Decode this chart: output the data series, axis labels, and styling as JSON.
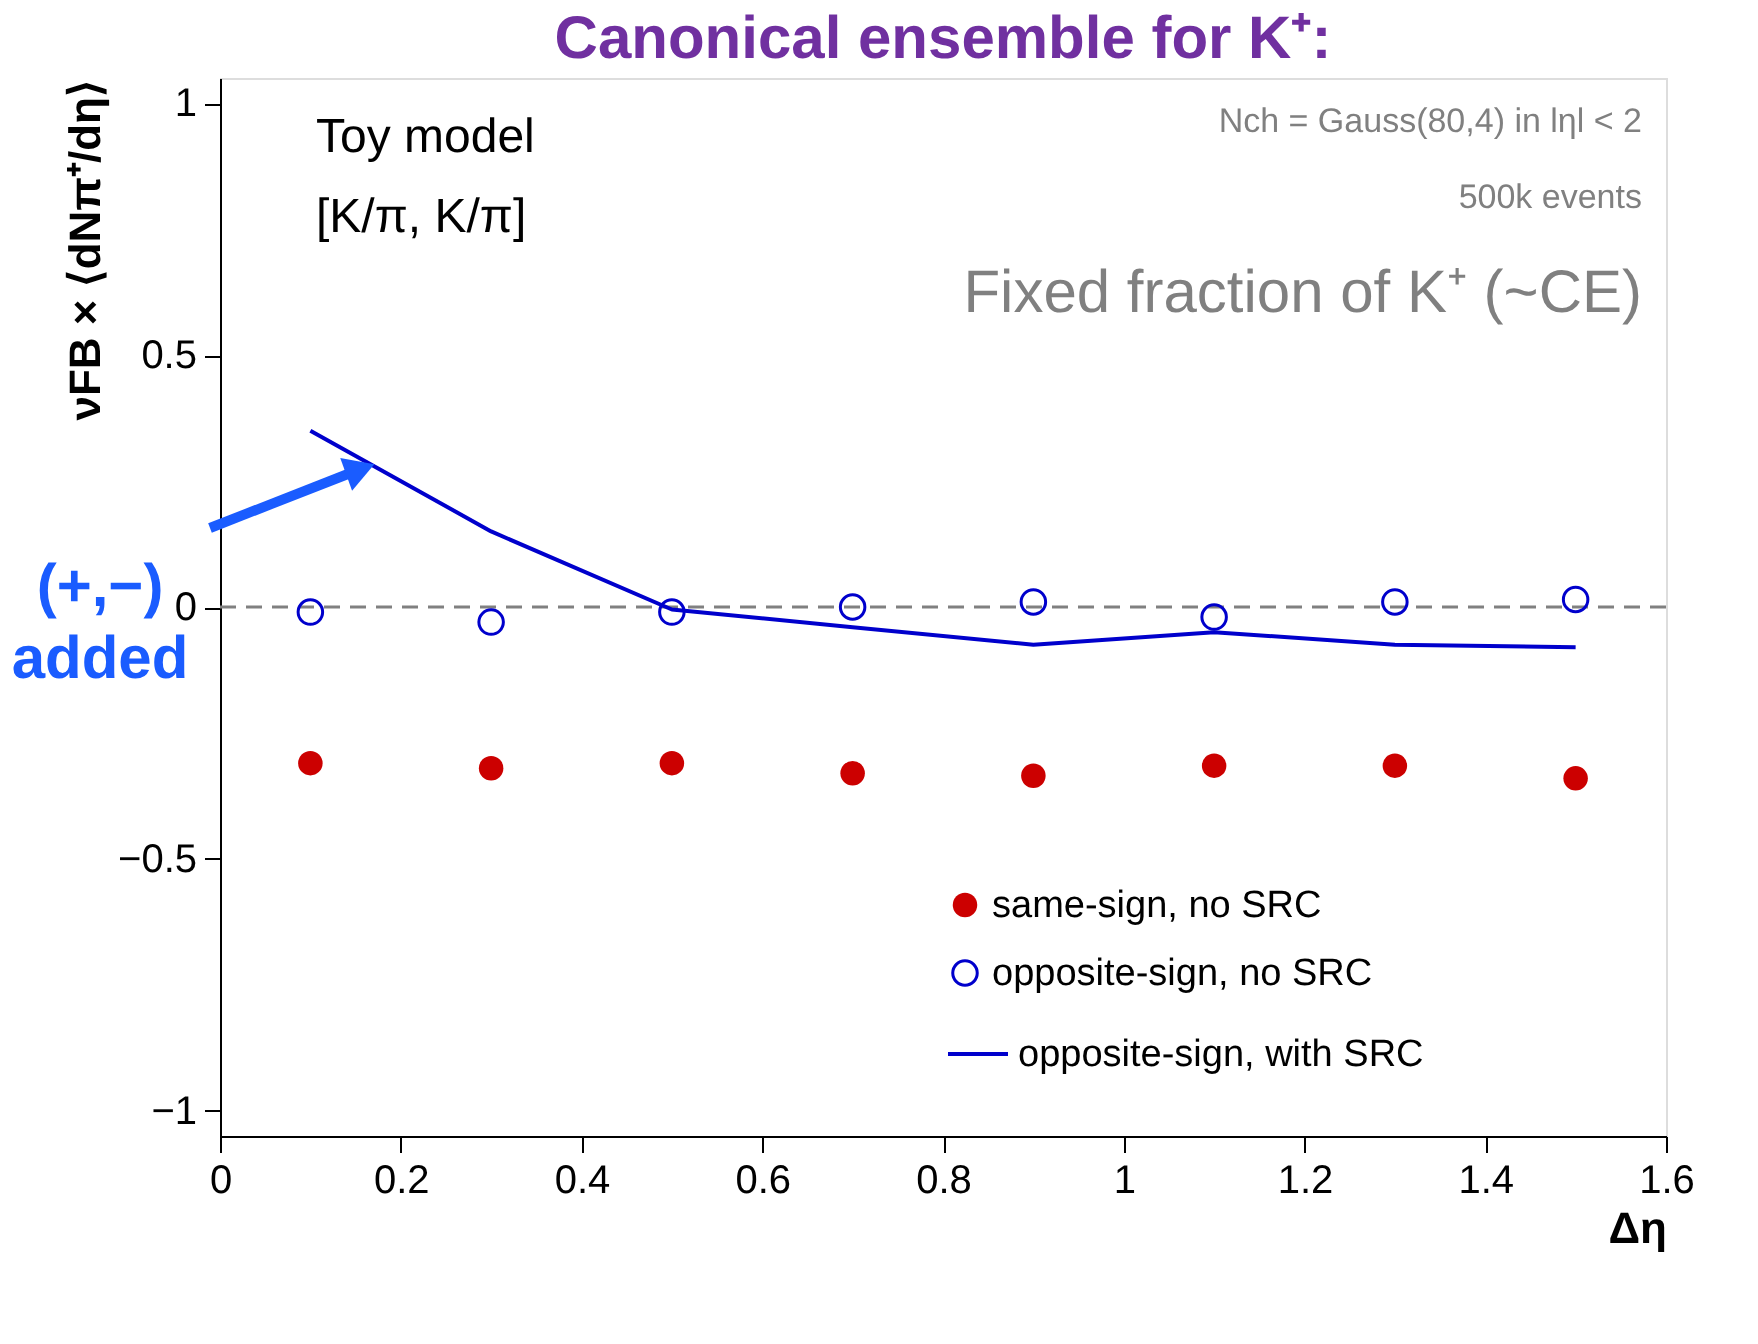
{
  "chart_data": {
    "type": "scatter",
    "title": "Canonical ensemble for K⁺:",
    "xlabel": "Δη",
    "ylabel": "νFB × ⟨dNπ⁺/dη⟩",
    "x": [
      0.1,
      0.3,
      0.5,
      0.7,
      0.9,
      1.1,
      1.3,
      1.5
    ],
    "series": [
      {
        "name": "same-sign, no SRC",
        "color": "#cc0000",
        "type": "scatter",
        "marker": "circle",
        "values": [
          -0.31,
          -0.32,
          -0.31,
          -0.33,
          -0.335,
          -0.315,
          -0.315,
          -0.34
        ]
      },
      {
        "name": "opposite-sign, no SRC",
        "color": "#0000cc",
        "marker": "circle_open",
        "values": [
          -0.01,
          -0.03,
          -0.01,
          0.0,
          0.01,
          -0.02,
          0.01,
          0.015
        ]
      },
      {
        "name": "opposite-sign, with SRC",
        "color": "#0000cc",
        "type": "line",
        "line_style": "solid",
        "values": [
          0.35,
          0.15,
          -0.005,
          -0.04,
          -0.075,
          -0.05,
          -0.075,
          -0.08
        ]
      }
    ],
    "xlim": [
      0,
      1.6
    ],
    "xticks": [
      0,
      0.2,
      0.4,
      0.6,
      0.8,
      1,
      1.2,
      1.4,
      1.6
    ],
    "ylim": [
      -1.05,
      1.05
    ],
    "yticks": [
      {
        "value": -1,
        "label": "−1"
      },
      {
        "value": -0.5,
        "label": "−0.5"
      },
      0,
      0.5,
      1
    ],
    "ref_lines": [
      {
        "axis": "y",
        "value": 0,
        "color": "#808080",
        "line_style": "dashed"
      }
    ],
    "legend": "bottom right",
    "grid": false,
    "annotations": [
      "Toy model",
      "[K/π, K/π]",
      "Nch = Gauss(80,4) in lηl < 2",
      "500k events",
      "Fixed fraction of K⁺ (~CE)",
      {
        "text": "(+,−)\nadded",
        "x": 0.15,
        "y": 0.27
      }
    ]
  }
}
